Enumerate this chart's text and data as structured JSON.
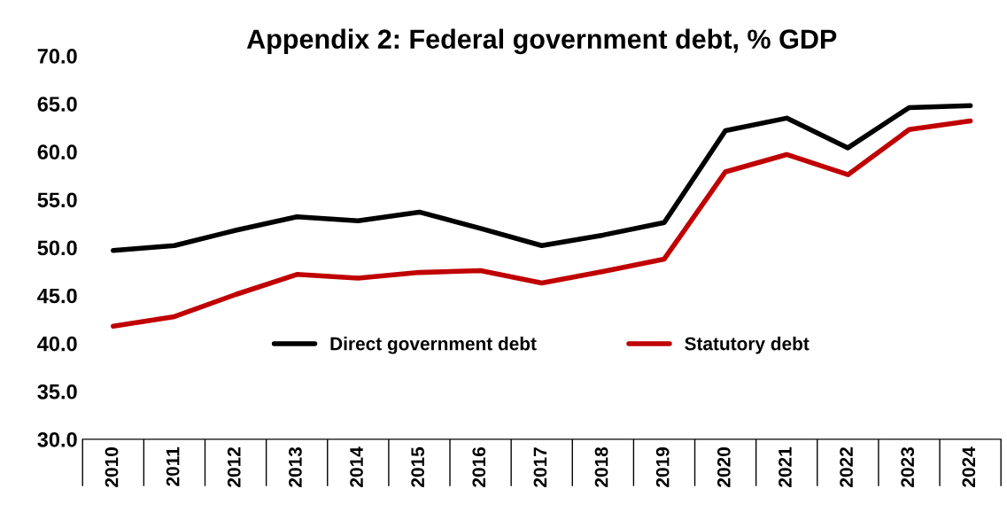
{
  "chart_data": {
    "type": "line",
    "title": "Appendix 2: Federal government debt, % GDP",
    "categories": [
      "2010",
      "2011",
      "2012",
      "2013",
      "2014",
      "2015",
      "2016",
      "2017",
      "2018",
      "2019",
      "2020",
      "2021",
      "2022",
      "2023",
      "2024"
    ],
    "series": [
      {
        "name": "Direct government debt",
        "color": "#000000",
        "values": [
          49.7,
          50.2,
          51.8,
          53.2,
          52.8,
          53.7,
          52.0,
          50.2,
          51.3,
          52.6,
          62.2,
          63.5,
          60.4,
          64.6,
          64.8
        ]
      },
      {
        "name": "Statutory debt",
        "color": "#c00000",
        "values": [
          41.8,
          42.8,
          45.1,
          47.2,
          46.8,
          47.4,
          47.6,
          46.3,
          47.5,
          48.8,
          57.9,
          59.7,
          57.6,
          62.3,
          63.2
        ]
      }
    ],
    "ylim": [
      30,
      70
    ],
    "yticks": [
      {
        "value": 30,
        "label": "30.0"
      },
      {
        "value": 35,
        "label": "35.0"
      },
      {
        "value": 40,
        "label": "40.0"
      },
      {
        "value": 45,
        "label": "45.0"
      },
      {
        "value": 50,
        "label": "50.0"
      },
      {
        "value": 55,
        "label": "55.0"
      },
      {
        "value": 60,
        "label": "60.0"
      },
      {
        "value": 65,
        "label": "65.0"
      },
      {
        "value": 70,
        "label": "70.0"
      }
    ],
    "grid": false,
    "legend": "bottom",
    "marker": "none",
    "line_style": "solid"
  }
}
